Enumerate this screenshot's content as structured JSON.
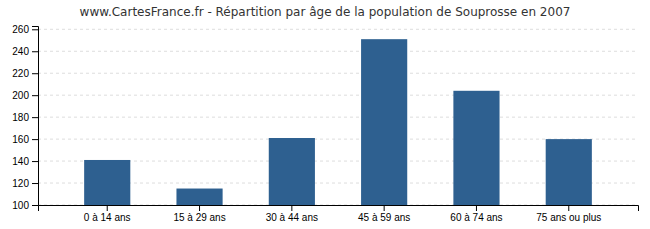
{
  "chart_data": {
    "type": "bar",
    "title": "www.CartesFrance.fr - Répartition par âge de la population de Souprosse en 2007",
    "categories": [
      "0 à 14 ans",
      "15 à 29 ans",
      "30 à 44 ans",
      "45 à 59 ans",
      "60 à 74 ans",
      "75 ans ou plus"
    ],
    "values": [
      141,
      115,
      161,
      251,
      204,
      160
    ],
    "color": "#2e6090",
    "ylim": [
      100,
      263
    ],
    "yticks": [
      100,
      120,
      140,
      160,
      180,
      200,
      220,
      240,
      260
    ],
    "grid": true
  }
}
